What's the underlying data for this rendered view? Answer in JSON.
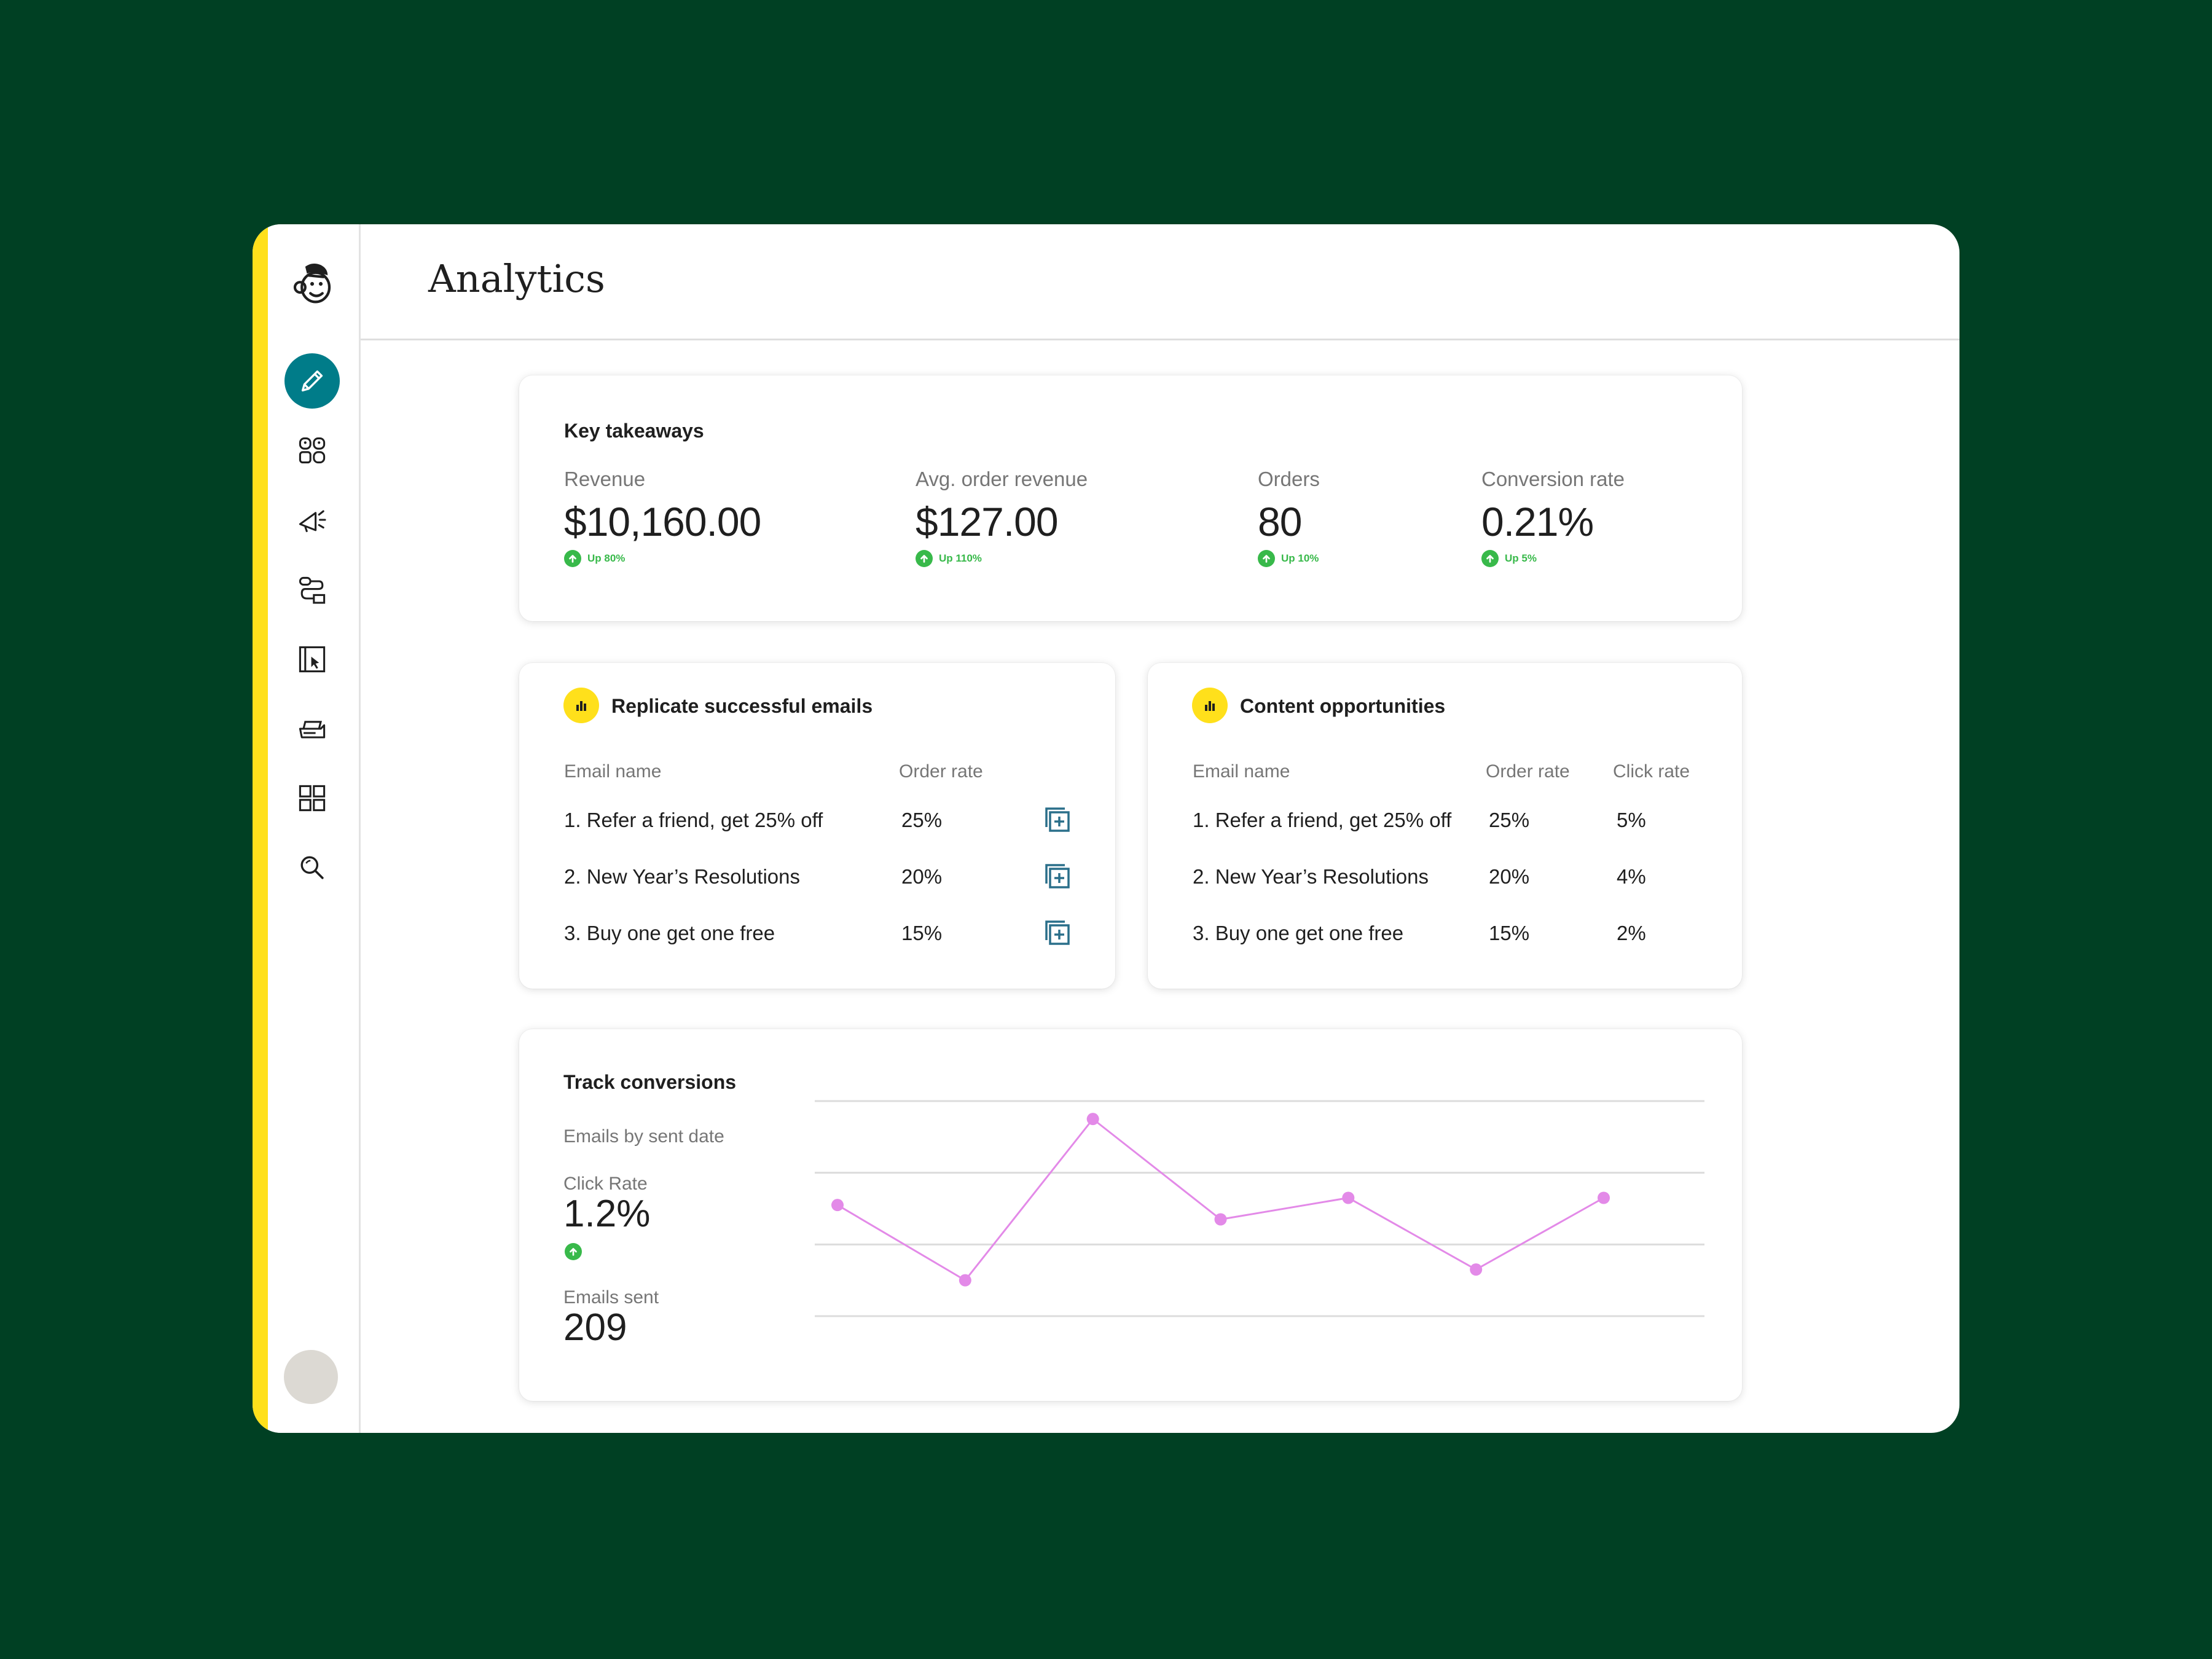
{
  "header": {
    "title": "Analytics"
  },
  "sidebar": {
    "items": [
      {
        "name": "create",
        "icon": "pencil-icon",
        "active": true
      },
      {
        "name": "audience",
        "icon": "audience-icon"
      },
      {
        "name": "campaigns",
        "icon": "megaphone-icon"
      },
      {
        "name": "automations",
        "icon": "automation-flow-icon"
      },
      {
        "name": "website",
        "icon": "website-cursor-icon"
      },
      {
        "name": "content",
        "icon": "content-studio-icon"
      },
      {
        "name": "integrations",
        "icon": "grid-icon"
      },
      {
        "name": "search",
        "icon": "search-icon"
      }
    ]
  },
  "key_takeaways": {
    "title": "Key takeaways",
    "metrics": [
      {
        "label": "Revenue",
        "value": "$10,160.00",
        "change": "Up 80%"
      },
      {
        "label": "Avg. order revenue",
        "value": "$127.00",
        "change": "Up 110%"
      },
      {
        "label": "Orders",
        "value": "80",
        "change": "Up 10%"
      },
      {
        "label": "Conversion rate",
        "value": "0.21%",
        "change": "Up 5%"
      }
    ]
  },
  "replicate": {
    "title": "Replicate successful emails",
    "columns": [
      "Email name",
      "Order rate"
    ],
    "rows": [
      {
        "name": "1. Refer a friend, get 25% off",
        "order_rate": "25%"
      },
      {
        "name": "2. New Year’s Resolutions",
        "order_rate": "20%"
      },
      {
        "name": "3. Buy one get one free",
        "order_rate": "15%"
      }
    ]
  },
  "content": {
    "title": "Content opportunities",
    "columns": [
      "Email name",
      "Order rate",
      "Click rate"
    ],
    "rows": [
      {
        "name": "1. Refer a friend, get 25% off",
        "order_rate": "25%",
        "click_rate": "5%"
      },
      {
        "name": "2. New Year’s Resolutions",
        "order_rate": "20%",
        "click_rate": "4%"
      },
      {
        "name": "3. Buy one get one free",
        "order_rate": "15%",
        "click_rate": "2%"
      }
    ]
  },
  "track": {
    "title": "Track conversions",
    "subtitle": "Emails by sent date",
    "click_rate_label": "Click Rate",
    "click_rate_value": "1.2%",
    "emails_sent_label": "Emails sent",
    "emails_sent_value": "209"
  },
  "chart_data": {
    "type": "line",
    "x": [
      1,
      2,
      3,
      4,
      5,
      6,
      7
    ],
    "values": [
      1.55,
      0.5,
      2.75,
      1.35,
      1.65,
      0.65,
      1.65
    ],
    "ylim": [
      0,
      3
    ],
    "grid": true,
    "color": "#e38ae8"
  },
  "colors": {
    "background": "#004023",
    "accent_yellow": "#ffe01b",
    "accent_teal": "#007c89",
    "positive": "#38b94a"
  }
}
